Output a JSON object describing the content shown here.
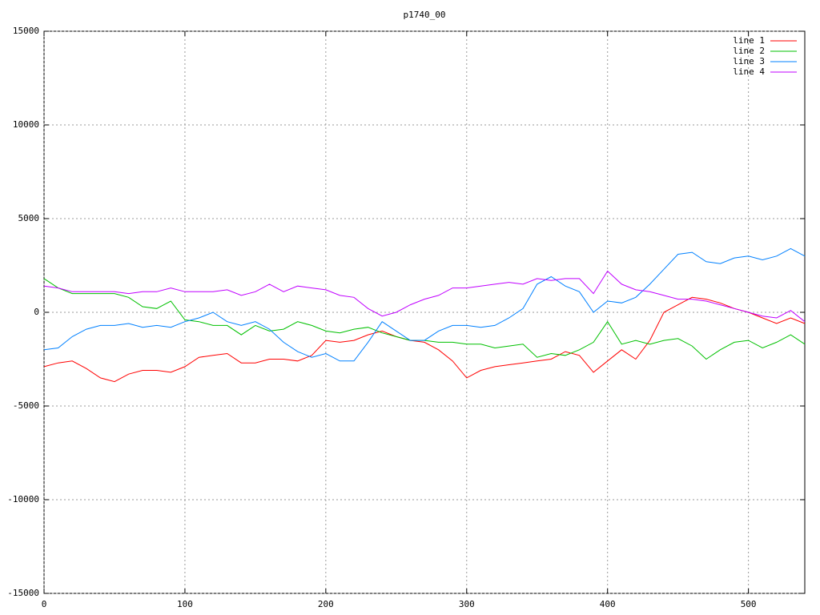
{
  "chart_data": {
    "type": "line",
    "title": "p1740_00",
    "x": [
      0,
      10,
      20,
      30,
      40,
      50,
      60,
      70,
      80,
      90,
      100,
      110,
      120,
      130,
      140,
      150,
      160,
      170,
      180,
      190,
      200,
      210,
      220,
      230,
      240,
      250,
      260,
      270,
      280,
      290,
      300,
      310,
      320,
      330,
      340,
      350,
      360,
      370,
      380,
      390,
      400,
      410,
      420,
      430,
      440,
      450,
      460,
      470,
      480,
      490,
      500,
      510,
      520,
      530,
      540
    ],
    "series": [
      {
        "name": "line 1",
        "color": "#ff0000",
        "values": [
          -2900,
          -2700,
          -2600,
          -3000,
          -3500,
          -3700,
          -3300,
          -3100,
          -3100,
          -3200,
          -2900,
          -2400,
          -2300,
          -2200,
          -2700,
          -2700,
          -2500,
          -2500,
          -2600,
          -2300,
          -1500,
          -1600,
          -1500,
          -1200,
          -1000,
          -1300,
          -1500,
          -1600,
          -2000,
          -2600,
          -3500,
          -3100,
          -2900,
          -2800,
          -2700,
          -2600,
          -2500,
          -2100,
          -2300,
          -3200,
          -2600,
          -2000,
          -2500,
          -1500,
          0,
          400,
          800,
          700,
          500,
          200,
          0,
          -300,
          -600,
          -300,
          -600
        ]
      },
      {
        "name": "line 2",
        "color": "#00c000",
        "values": [
          1800,
          1300,
          1000,
          1000,
          1000,
          1000,
          800,
          300,
          200,
          600,
          -400,
          -500,
          -700,
          -700,
          -1200,
          -700,
          -1000,
          -900,
          -500,
          -700,
          -1000,
          -1100,
          -900,
          -800,
          -1100,
          -1300,
          -1500,
          -1500,
          -1600,
          -1600,
          -1700,
          -1700,
          -1900,
          -1800,
          -1700,
          -2400,
          -2200,
          -2300,
          -2000,
          -1600,
          -500,
          -1700,
          -1500,
          -1700,
          -1500,
          -1400,
          -1800,
          -2500,
          -2000,
          -1600,
          -1500,
          -1900,
          -1600,
          -1200,
          -1700
        ]
      },
      {
        "name": "line 3",
        "color": "#0080ff",
        "values": [
          -2000,
          -1900,
          -1300,
          -900,
          -700,
          -700,
          -600,
          -800,
          -700,
          -800,
          -500,
          -300,
          0,
          -500,
          -700,
          -500,
          -900,
          -1600,
          -2100,
          -2400,
          -2200,
          -2600,
          -2600,
          -1600,
          -500,
          -1000,
          -1500,
          -1500,
          -1000,
          -700,
          -700,
          -800,
          -700,
          -300,
          200,
          1500,
          1900,
          1400,
          1100,
          0,
          600,
          500,
          800,
          1500,
          2300,
          3100,
          3200,
          2700,
          2600,
          2900,
          3000,
          2800,
          3000,
          3400,
          3000
        ]
      },
      {
        "name": "line 4",
        "color": "#c000ff",
        "values": [
          1400,
          1300,
          1100,
          1100,
          1100,
          1100,
          1000,
          1100,
          1100,
          1300,
          1100,
          1100,
          1100,
          1200,
          900,
          1100,
          1500,
          1100,
          1400,
          1300,
          1200,
          900,
          800,
          200,
          -200,
          0,
          400,
          700,
          900,
          1300,
          1300,
          1400,
          1500,
          1600,
          1500,
          1800,
          1700,
          1800,
          1800,
          1000,
          2200,
          1500,
          1200,
          1100,
          900,
          700,
          700,
          600,
          400,
          200,
          0,
          -200,
          -300,
          100,
          -500
        ]
      }
    ],
    "xlim": [
      0,
      540
    ],
    "xticks": [
      0,
      100,
      200,
      300,
      400,
      500
    ],
    "ylim": [
      -15000,
      15000
    ],
    "yticks": [
      -15000,
      -10000,
      -5000,
      0,
      5000,
      10000,
      15000
    ],
    "grid": true,
    "legend": "top-right"
  }
}
